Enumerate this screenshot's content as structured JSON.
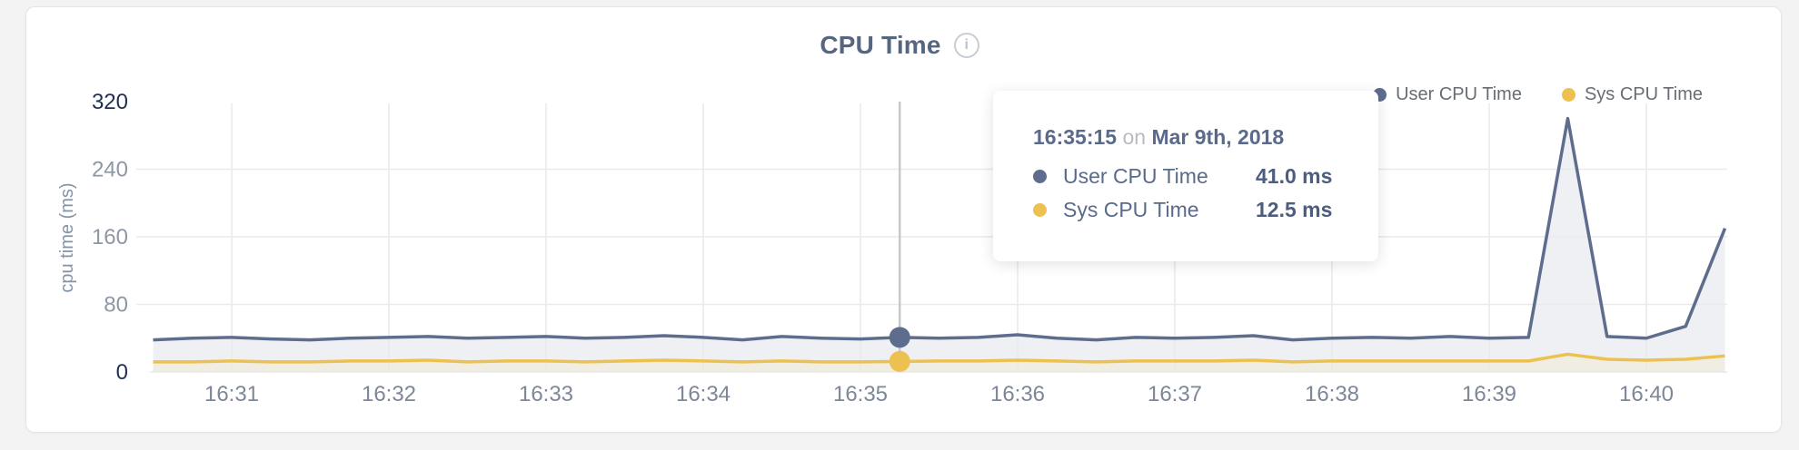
{
  "header": {
    "title": "CPU Time",
    "info_icon": "i"
  },
  "legend": [
    {
      "label": "User CPU Time",
      "color": "#5e6d8e"
    },
    {
      "label": "Sys CPU Time",
      "color": "#ecc14f"
    }
  ],
  "tooltip": {
    "time": "16:35:15",
    "connector": "on",
    "date": "Mar 9th, 2018",
    "rows": [
      {
        "label": "User CPU Time",
        "value": "41.0 ms",
        "color": "#5e6d8e"
      },
      {
        "label": "Sys CPU Time",
        "value": "12.5 ms",
        "color": "#ecc14f"
      }
    ]
  },
  "chart_data": {
    "type": "area",
    "title": "CPU Time",
    "ylabel": "cpu time (ms)",
    "ylim": [
      0,
      320
    ],
    "yticks": [
      0,
      80,
      160,
      240,
      320
    ],
    "xticks": [
      "16:31",
      "16:32",
      "16:33",
      "16:34",
      "16:35",
      "16:36",
      "16:37",
      "16:38",
      "16:39",
      "16:40"
    ],
    "grid": true,
    "legend_position": "top-right",
    "x": [
      "16:30:30",
      "16:30:45",
      "16:31:00",
      "16:31:15",
      "16:31:30",
      "16:31:45",
      "16:32:00",
      "16:32:15",
      "16:32:30",
      "16:32:45",
      "16:33:00",
      "16:33:15",
      "16:33:30",
      "16:33:45",
      "16:34:00",
      "16:34:15",
      "16:34:30",
      "16:34:45",
      "16:35:00",
      "16:35:15",
      "16:35:30",
      "16:35:45",
      "16:36:00",
      "16:36:15",
      "16:36:30",
      "16:36:45",
      "16:37:00",
      "16:37:15",
      "16:37:30",
      "16:37:45",
      "16:38:00",
      "16:38:15",
      "16:38:30",
      "16:38:45",
      "16:39:00",
      "16:39:15",
      "16:39:30",
      "16:39:45",
      "16:40:00",
      "16:40:15",
      "16:40:30"
    ],
    "series": [
      {
        "name": "User CPU Time",
        "color": "#5e6d8e",
        "fill": "#eff0f3",
        "values": [
          38,
          40,
          41,
          39,
          38,
          40,
          41,
          42,
          40,
          41,
          42,
          40,
          41,
          43,
          41,
          38,
          42,
          40,
          39,
          41,
          40,
          41,
          44,
          40,
          38,
          41,
          40,
          41,
          43,
          38,
          40,
          41,
          40,
          42,
          40,
          41,
          300,
          42,
          40,
          54,
          170
        ]
      },
      {
        "name": "Sys CPU Time",
        "color": "#ecc14f",
        "fill": "#f0ede3",
        "values": [
          12,
          12,
          13,
          12,
          12,
          13,
          13,
          14,
          12,
          13,
          13,
          12,
          13,
          14,
          13,
          12,
          13,
          12,
          12,
          12.5,
          13,
          13,
          14,
          13,
          12,
          13,
          13,
          13,
          14,
          12,
          13,
          13,
          13,
          13,
          13,
          13,
          21,
          15,
          14,
          15,
          19
        ]
      }
    ],
    "hover": {
      "time": "16:35:15",
      "user_value": 41.0,
      "sys_value": 12.5
    }
  }
}
